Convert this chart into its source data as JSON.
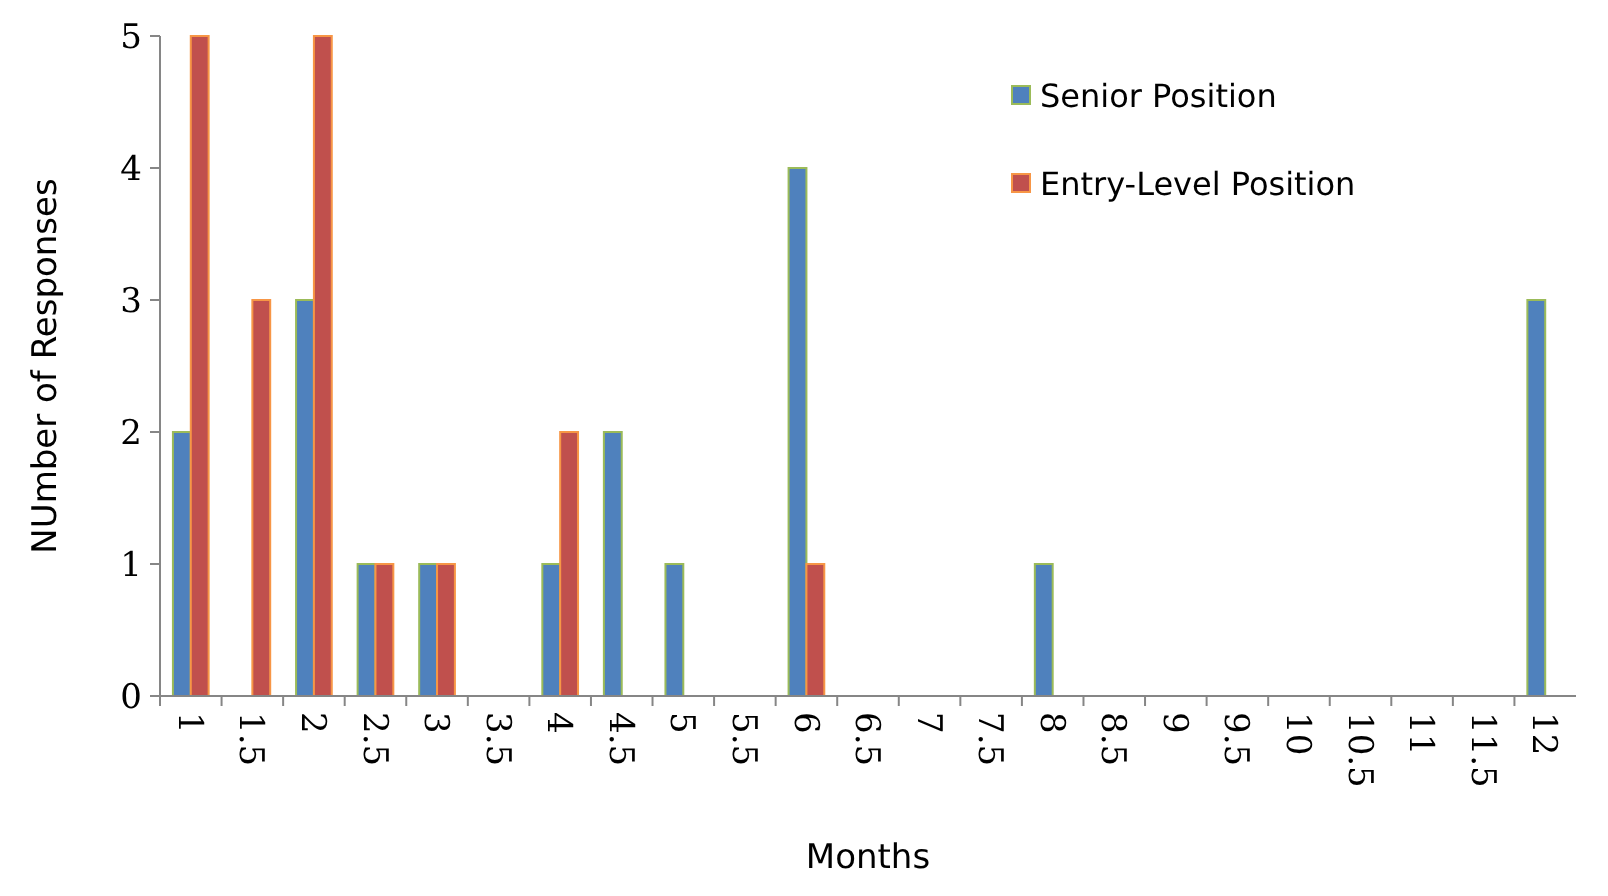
{
  "chart_data": {
    "type": "bar",
    "xlabel": "Months",
    "ylabel": "NUmber of Responses",
    "categories": [
      "1",
      "1.5",
      "2",
      "2.5",
      "3",
      "3.5",
      "4",
      "4.5",
      "5",
      "5.5",
      "6",
      "6.5",
      "7",
      "7.5",
      "8",
      "8.5",
      "9",
      "9.5",
      "10",
      "10.5",
      "11",
      "11.5",
      "12"
    ],
    "series": [
      {
        "name": "Senior Position",
        "color": "#4f81bd",
        "values": [
          2,
          0,
          3,
          1,
          1,
          0,
          1,
          2,
          1,
          0,
          4,
          0,
          0,
          0,
          1,
          0,
          0,
          0,
          0,
          0,
          0,
          0,
          3
        ]
      },
      {
        "name": "Entry-Level Position",
        "color": "#c0504d",
        "values": [
          5,
          3,
          5,
          1,
          1,
          0,
          2,
          0,
          0,
          0,
          1,
          0,
          0,
          0,
          0,
          0,
          0,
          0,
          0,
          0,
          0,
          0,
          0
        ]
      }
    ],
    "ylim": [
      0,
      5
    ],
    "yticks": [
      0,
      1,
      2,
      3,
      4,
      5
    ],
    "grid": false,
    "legend": "top right"
  }
}
